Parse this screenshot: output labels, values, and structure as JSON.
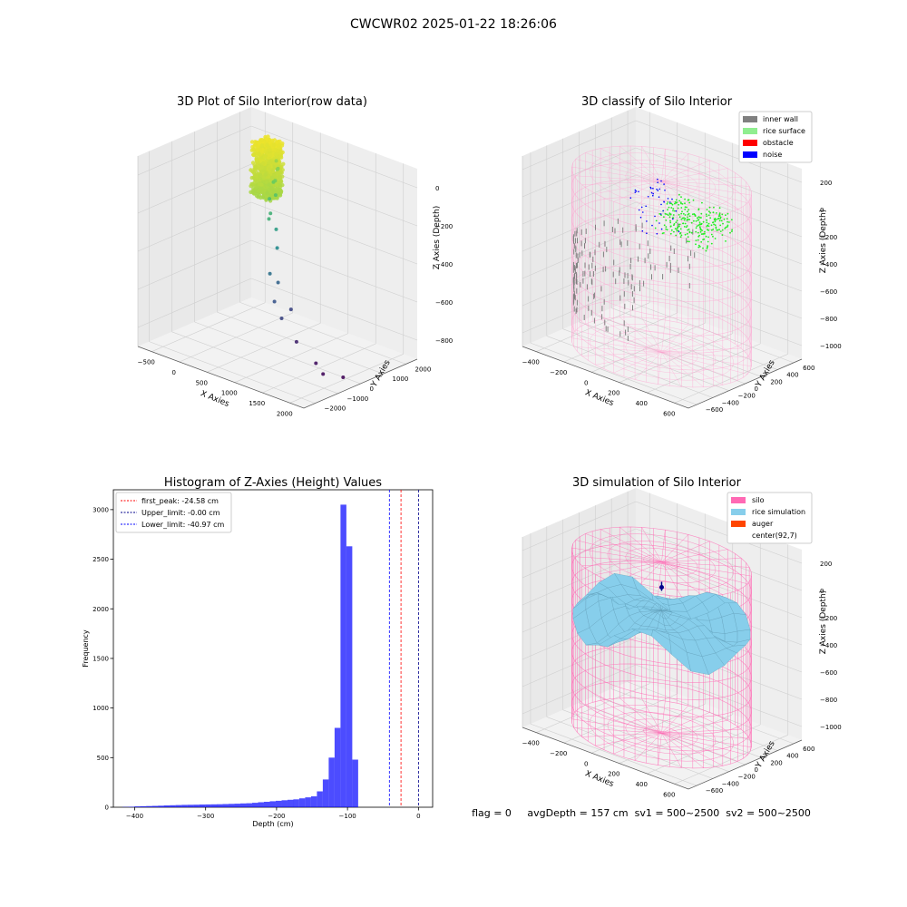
{
  "figure": {
    "suptitle": "CWCWR02 2025-01-22 18:26:06",
    "status_line": "flag = 0     avgDepth = 157 cm  sv1 = 500~2500  sv2 = 500~2500"
  },
  "chart_data": [
    {
      "type": "scatter",
      "title": "3D Plot of Silo Interior(row data)",
      "xlabel": "X Axies",
      "ylabel": "Y Axies",
      "zlabel": "Z Axies (Depth)",
      "xticks": [
        "−500",
        "0",
        "500",
        "1000",
        "1500",
        "2000"
      ],
      "yticks": [
        "−2000",
        "−1000",
        "0",
        "1000",
        "2000"
      ],
      "zticks": [
        "−800",
        "−600",
        "−400",
        "−200",
        "0"
      ],
      "xlim": [
        -600,
        2100
      ],
      "ylim": [
        -2200,
        2200
      ],
      "zlim": [
        -900,
        50
      ],
      "colormap": "viridis",
      "dense_cluster": {
        "x_range": [
          -150,
          150
        ],
        "y_range": [
          1100,
          1700
        ],
        "z_range": [
          -280,
          -10
        ]
      },
      "points": [
        {
          "x": 100,
          "y": 1500,
          "z": -100
        },
        {
          "x": 150,
          "y": 1450,
          "z": -130
        },
        {
          "x": 180,
          "y": 1200,
          "z": -180
        },
        {
          "x": 200,
          "y": 1300,
          "z": -120
        },
        {
          "x": 200,
          "y": 1000,
          "z": -250
        },
        {
          "x": 250,
          "y": 1100,
          "z": -160
        },
        {
          "x": 300,
          "y": 1000,
          "z": -220
        },
        {
          "x": 300,
          "y": 800,
          "z": -300
        },
        {
          "x": 350,
          "y": 900,
          "z": -380
        },
        {
          "x": 400,
          "y": 500,
          "z": -300
        },
        {
          "x": 450,
          "y": 700,
          "z": -450
        },
        {
          "x": 500,
          "y": 300,
          "z": -550
        },
        {
          "x": 550,
          "y": 500,
          "z": -600
        },
        {
          "x": 700,
          "y": 0,
          "z": -650
        },
        {
          "x": 800,
          "y": 400,
          "z": -700
        },
        {
          "x": 900,
          "y": -200,
          "z": -700
        },
        {
          "x": 1100,
          "y": -100,
          "z": -800
        },
        {
          "x": 1500,
          "y": -300,
          "z": -850
        },
        {
          "x": 1700,
          "y": -500,
          "z": -870
        },
        {
          "x": 1900,
          "y": -200,
          "z": -880
        }
      ]
    },
    {
      "type": "scatter",
      "title": "3D classify of Silo Interior",
      "xlabel": "X Axies",
      "ylabel": "Y Axies",
      "zlabel": "Z Axies (Depth)",
      "xticks": [
        "−400",
        "−200",
        "0",
        "200",
        "400",
        "600"
      ],
      "yticks": [
        "−600",
        "−400",
        "−200",
        "0",
        "200",
        "400",
        "600"
      ],
      "zticks": [
        "−1000",
        "−800",
        "−600",
        "−400",
        "−200",
        "0",
        "200"
      ],
      "xlim": [
        -500,
        700
      ],
      "ylim": [
        -650,
        650
      ],
      "zlim": [
        -1000,
        280
      ],
      "legend": [
        {
          "label": "inner wall",
          "color": "#808080"
        },
        {
          "label": "rice surface",
          "color": "#90ee90"
        },
        {
          "label": "obstacle",
          "color": "#ff0000"
        },
        {
          "label": "noise",
          "color": "#0000ff"
        }
      ],
      "silo_color": "#ffb6d9",
      "silo": {
        "cx": 92,
        "cy": 7,
        "radius": 550,
        "z_top": 150,
        "z_bottom": -1000
      }
    },
    {
      "type": "bar",
      "title": "Histogram of Z-Axies (Height) Values",
      "xlabel": "Depth (cm)",
      "ylabel": "Frequency",
      "xlim": [
        -430,
        20
      ],
      "ylim": [
        0,
        3200
      ],
      "xticks": [
        -400,
        -300,
        -200,
        -100,
        0
      ],
      "xtick_labels": [
        "−400",
        "−300",
        "−200",
        "−100",
        "0"
      ],
      "yticks": [
        0,
        500,
        1000,
        1500,
        2000,
        2500,
        3000
      ],
      "bar_color": "#0000ff",
      "bin_width": 8.3,
      "bins_start": -417,
      "counts": [
        3,
        5,
        8,
        10,
        12,
        14,
        16,
        18,
        20,
        22,
        24,
        25,
        26,
        27,
        28,
        29,
        30,
        32,
        34,
        36,
        38,
        40,
        45,
        50,
        55,
        60,
        65,
        70,
        75,
        80,
        90,
        100,
        110,
        160,
        280,
        500,
        800,
        3050,
        2630,
        480
      ],
      "lines": [
        {
          "label": "first_peak: -24.58 cm",
          "x": -24.58,
          "color": "#ff0000"
        },
        {
          "label": "Upper_limit: -0.00 cm",
          "x": -0.0,
          "color": "#00008b"
        },
        {
          "label": "Lower_limit: -40.97 cm",
          "x": -40.97,
          "color": "#0000ff"
        }
      ]
    },
    {
      "type": "surface",
      "title": "3D simulation of Silo Interior",
      "xlabel": "X Axies",
      "ylabel": "Y Axies",
      "zlabel": "Z Axies (Depth)",
      "xticks": [
        "−400",
        "−200",
        "0",
        "200",
        "400",
        "600"
      ],
      "yticks": [
        "−600",
        "−400",
        "−200",
        "0",
        "200",
        "400",
        "600"
      ],
      "zticks": [
        "−1000",
        "−800",
        "−600",
        "−400",
        "−200",
        "0",
        "200"
      ],
      "xlim": [
        -500,
        700
      ],
      "ylim": [
        -650,
        650
      ],
      "zlim": [
        -1000,
        280
      ],
      "legend": [
        {
          "label": "silo",
          "color": "#ff69b4"
        },
        {
          "label": "rice simulation",
          "color": "#87ceeb"
        },
        {
          "label": "auger",
          "color": "#ff4500"
        },
        {
          "label": "center(92,7)",
          "color": "none"
        }
      ],
      "silo": {
        "cx": 92,
        "cy": 7,
        "radius": 550,
        "z_top": 150,
        "z_bottom": -1000
      },
      "surface_avg_z": -157
    }
  ]
}
